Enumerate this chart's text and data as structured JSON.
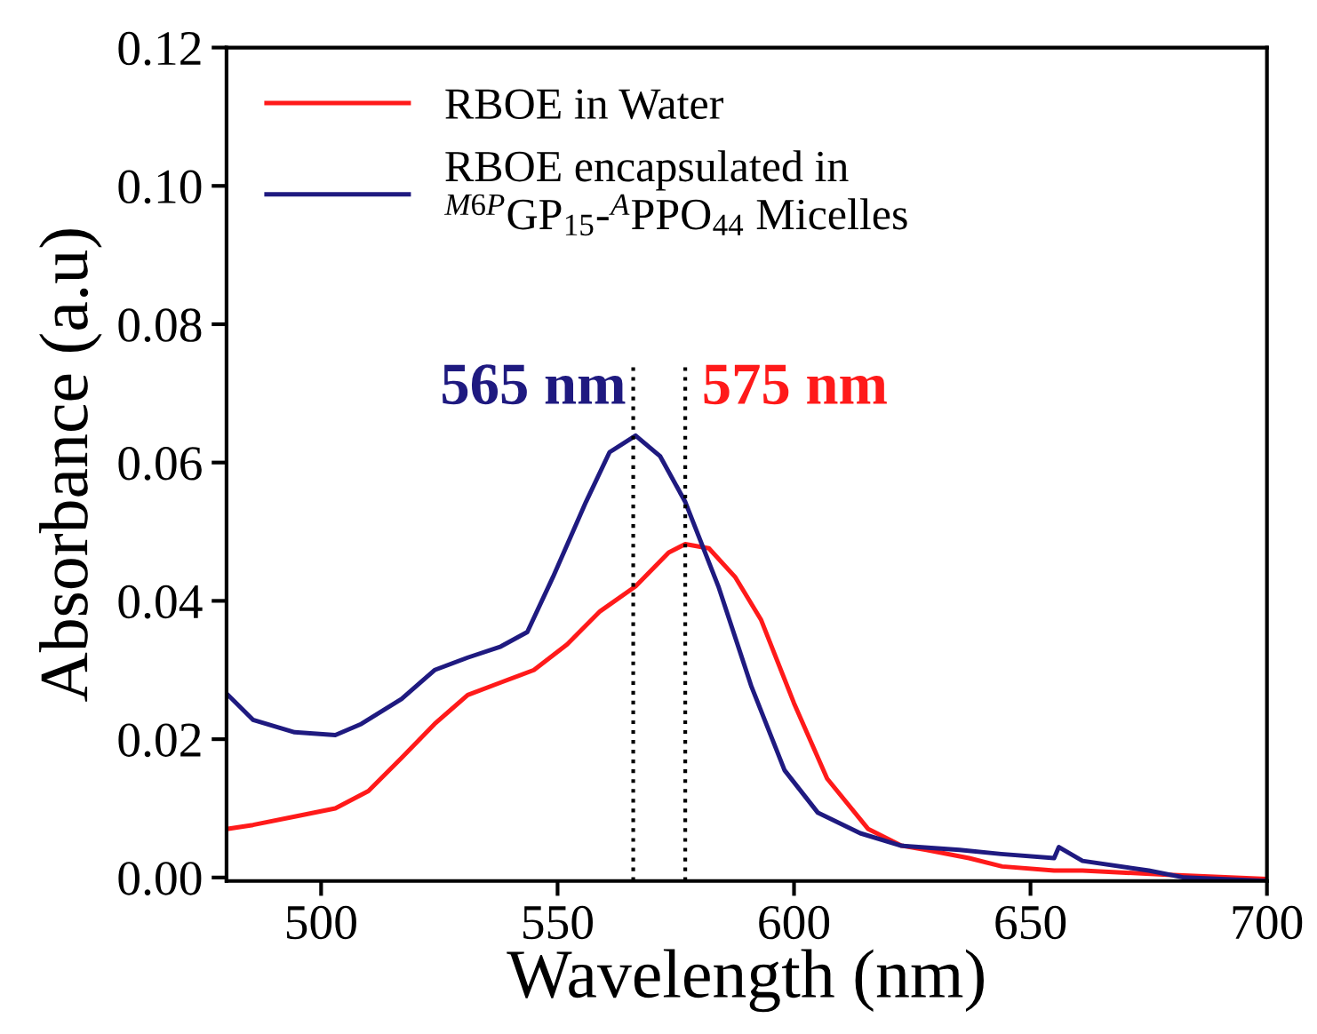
{
  "chart_data": {
    "type": "line",
    "xlabel": "Wavelength (nm)",
    "ylabel": "Absorbance (a.u)",
    "xlim": [
      480,
      700
    ],
    "xticks": [
      500,
      550,
      600,
      650,
      700
    ],
    "ylim": [
      -0.0005,
      0.12
    ],
    "yticks": [
      {
        "value": 0,
        "label": "0.00"
      },
      {
        "value": 0.02,
        "label": "0.02"
      },
      {
        "value": 0.04,
        "label": "0.04"
      },
      {
        "value": 0.06,
        "label": "0.06"
      },
      {
        "value": 0.08,
        "label": "0.08"
      },
      {
        "value": 0.1,
        "label": "0.10"
      },
      {
        "value": 0.12,
        "label": "0.12"
      }
    ],
    "grid": false,
    "legend": "top left",
    "line_style": "solid",
    "marker": "none",
    "series": [
      {
        "name": "RBOE in Water",
        "color": "#ff1a1a",
        "x": [
          480,
          485.6,
          494.4,
          503,
          510,
          517,
          524,
          531,
          538,
          545,
          552,
          559,
          566.5,
          573.5,
          577,
          582,
          587.6,
          593,
          600,
          607,
          615.7,
          622.7,
          628,
          637,
          644,
          655,
          661,
          679,
          700
        ],
        "values": [
          0.007,
          0.0076,
          0.0088,
          0.01,
          0.0125,
          0.0173,
          0.0222,
          0.0264,
          0.0282,
          0.03,
          0.0337,
          0.0385,
          0.0421,
          0.047,
          0.0482,
          0.0476,
          0.0434,
          0.0373,
          0.0252,
          0.0143,
          0.007,
          0.0046,
          0.004,
          0.0028,
          0.0016,
          0.001,
          0.001,
          0.0004,
          -0.0002
        ]
      },
      {
        "name": "RBOE encapsulated in\n$^{M6P}$GP$_{15}$-$^{A}$PPO$_{44}$ Micelles",
        "color": "#1f1a80",
        "x": [
          480,
          485.6,
          494.4,
          503,
          508.5,
          517,
          524,
          531,
          538,
          543.6,
          549,
          556,
          561,
          566.5,
          571.7,
          577,
          584,
          591,
          598,
          605,
          614,
          622.7,
          635,
          643.8,
          655,
          656,
          661,
          675,
          682.5,
          700
        ],
        "values": [
          0.0266,
          0.0228,
          0.021,
          0.0206,
          0.0222,
          0.0258,
          0.03,
          0.0318,
          0.0334,
          0.0355,
          0.0434,
          0.0543,
          0.0615,
          0.0639,
          0.0609,
          0.0543,
          0.0421,
          0.0276,
          0.0155,
          0.0094,
          0.0064,
          0.0046,
          0.004,
          0.0034,
          0.0028,
          0.0044,
          0.0024,
          0.001,
          0.0,
          -0.0005
        ]
      }
    ],
    "ref_lines": [
      {
        "axis": "x",
        "value": 566,
        "label": "565 nm",
        "color": "#000000",
        "line_style": "dotted"
      },
      {
        "axis": "x",
        "value": 577,
        "label": "575 nm",
        "color": "#000000",
        "line_style": "dotted"
      }
    ]
  }
}
